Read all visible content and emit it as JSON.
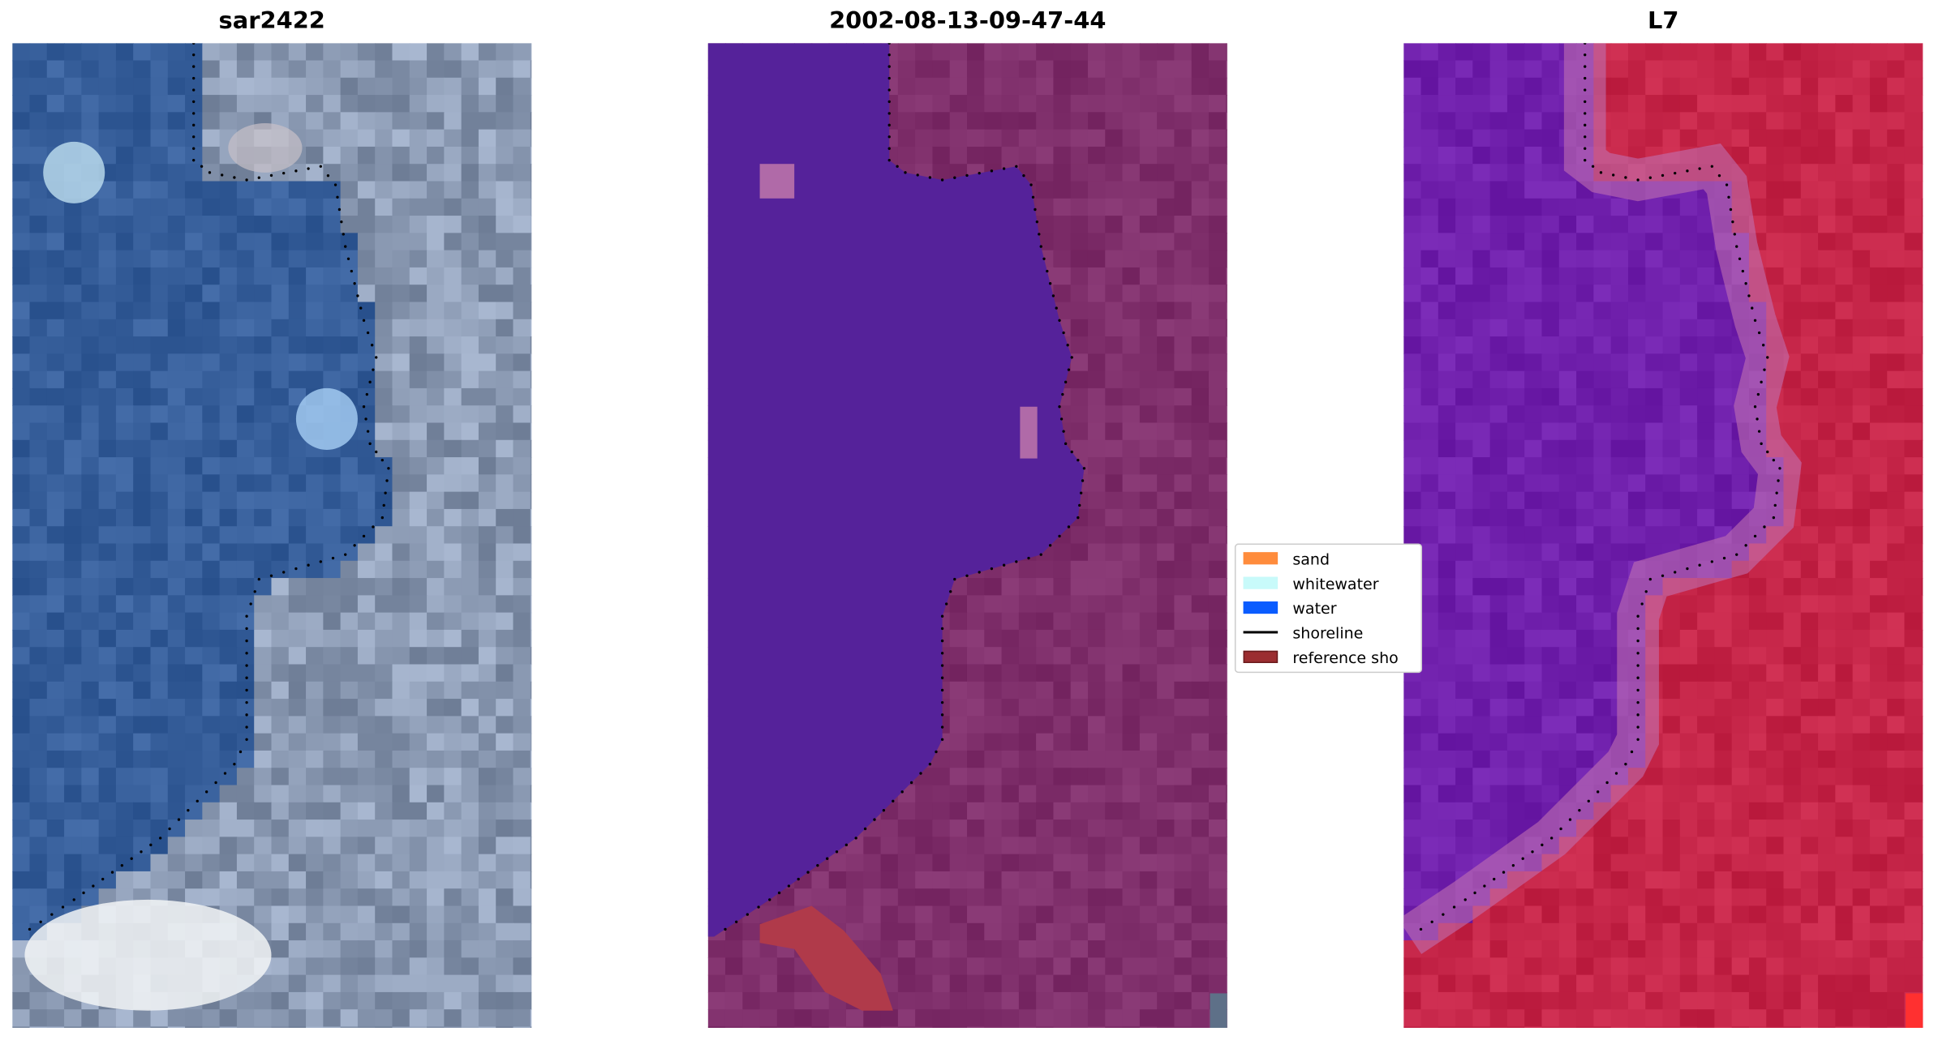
{
  "panels": [
    {
      "title": "sar2422",
      "style": "rgb-composite"
    },
    {
      "title": "2002-08-13-09-47-44",
      "style": "classified-overlay"
    },
    {
      "title": "L7",
      "style": "false-color"
    }
  ],
  "legend": {
    "items": [
      {
        "label": "sand",
        "color": "#ff8c3c",
        "kind": "patch"
      },
      {
        "label": "whitewater",
        "color": "#c8fafa",
        "kind": "patch"
      },
      {
        "label": "water",
        "color": "#0a5cff",
        "kind": "patch"
      },
      {
        "label": "shoreline",
        "color": "#000000",
        "kind": "line"
      },
      {
        "label": "reference sho",
        "color": "#9b2d30",
        "kind": "patch"
      }
    ]
  }
}
